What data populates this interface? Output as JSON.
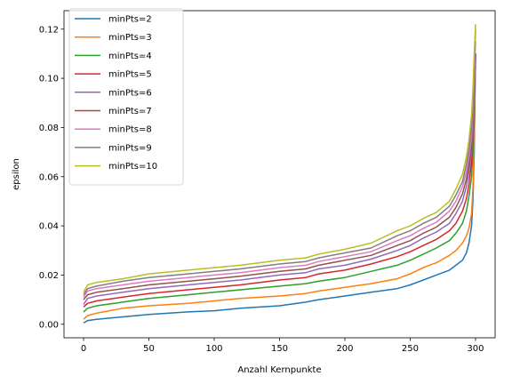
{
  "chart_data": {
    "type": "line",
    "xlabel": "Anzahl Kernpunkte",
    "ylabel": "epsilon",
    "xlim": [
      -15,
      315
    ],
    "ylim": [
      -0.0055,
      0.1275
    ],
    "xticks": [
      0,
      50,
      100,
      150,
      200,
      250,
      300
    ],
    "xtick_labels": [
      "0",
      "50",
      "100",
      "150",
      "200",
      "250",
      "300"
    ],
    "yticks": [
      0.0,
      0.02,
      0.04,
      0.06,
      0.08,
      0.1,
      0.12
    ],
    "ytick_labels": [
      "0.00",
      "0.02",
      "0.04",
      "0.06",
      "0.08",
      "0.10",
      "0.12"
    ],
    "grid": false,
    "legend_position": "top-left",
    "series": [
      {
        "name": "minPts=2",
        "color": "#1f77b4",
        "x": [
          0,
          3,
          10,
          30,
          50,
          80,
          100,
          120,
          150,
          170,
          180,
          200,
          220,
          240,
          250,
          260,
          270,
          280,
          285,
          290,
          293,
          295,
          297,
          298,
          299,
          300
        ],
        "values": [
          0.0005,
          0.0015,
          0.002,
          0.003,
          0.004,
          0.005,
          0.0055,
          0.0065,
          0.0075,
          0.009,
          0.01,
          0.0115,
          0.013,
          0.0145,
          0.016,
          0.018,
          0.02,
          0.022,
          0.024,
          0.026,
          0.029,
          0.033,
          0.04,
          0.05,
          0.07,
          0.11
        ]
      },
      {
        "name": "minPts=3",
        "color": "#ff7f0e",
        "x": [
          0,
          3,
          10,
          30,
          50,
          80,
          100,
          120,
          150,
          170,
          180,
          200,
          220,
          240,
          250,
          260,
          270,
          280,
          285,
          290,
          293,
          295,
          297,
          298,
          299,
          300
        ],
        "values": [
          0.002,
          0.0035,
          0.0045,
          0.0065,
          0.0075,
          0.0085,
          0.0095,
          0.0105,
          0.0115,
          0.0125,
          0.0135,
          0.015,
          0.0165,
          0.0185,
          0.0205,
          0.023,
          0.025,
          0.028,
          0.03,
          0.033,
          0.036,
          0.039,
          0.045,
          0.055,
          0.075,
          0.11
        ]
      },
      {
        "name": "minPts=4",
        "color": "#2ca02c",
        "x": [
          0,
          3,
          10,
          30,
          50,
          80,
          100,
          120,
          150,
          170,
          180,
          200,
          220,
          240,
          250,
          260,
          270,
          280,
          285,
          290,
          293,
          295,
          297,
          298,
          299,
          300
        ],
        "values": [
          0.005,
          0.0065,
          0.0075,
          0.009,
          0.0105,
          0.012,
          0.013,
          0.014,
          0.0155,
          0.0165,
          0.0175,
          0.019,
          0.0215,
          0.024,
          0.026,
          0.0285,
          0.031,
          0.034,
          0.037,
          0.041,
          0.046,
          0.052,
          0.06,
          0.07,
          0.085,
          0.11
        ]
      },
      {
        "name": "minPts=5",
        "color": "#d62728",
        "x": [
          0,
          3,
          10,
          30,
          50,
          80,
          100,
          120,
          150,
          170,
          180,
          200,
          220,
          240,
          250,
          260,
          270,
          280,
          285,
          290,
          293,
          295,
          297,
          298,
          299,
          300
        ],
        "values": [
          0.007,
          0.0085,
          0.0095,
          0.011,
          0.0125,
          0.014,
          0.015,
          0.016,
          0.018,
          0.019,
          0.0205,
          0.022,
          0.0245,
          0.0275,
          0.0295,
          0.032,
          0.0345,
          0.038,
          0.041,
          0.046,
          0.051,
          0.057,
          0.066,
          0.075,
          0.09,
          0.11
        ]
      },
      {
        "name": "minPts=6",
        "color": "#9467bd",
        "x": [
          0,
          3,
          10,
          30,
          50,
          80,
          100,
          120,
          150,
          170,
          180,
          200,
          220,
          240,
          250,
          260,
          270,
          280,
          285,
          290,
          293,
          295,
          297,
          298,
          299,
          300
        ],
        "values": [
          0.008,
          0.0105,
          0.0115,
          0.013,
          0.0145,
          0.016,
          0.017,
          0.018,
          0.02,
          0.021,
          0.0225,
          0.024,
          0.0265,
          0.03,
          0.032,
          0.035,
          0.0375,
          0.041,
          0.045,
          0.05,
          0.056,
          0.062,
          0.07,
          0.078,
          0.09,
          0.105
        ]
      },
      {
        "name": "minPts=7",
        "color": "#8c564b",
        "x": [
          0,
          3,
          10,
          30,
          50,
          80,
          100,
          120,
          150,
          170,
          180,
          200,
          220,
          240,
          250,
          260,
          270,
          280,
          285,
          290,
          293,
          295,
          297,
          298,
          299,
          300
        ],
        "values": [
          0.01,
          0.012,
          0.013,
          0.0145,
          0.016,
          0.0175,
          0.0185,
          0.0195,
          0.0215,
          0.0225,
          0.024,
          0.026,
          0.028,
          0.032,
          0.034,
          0.037,
          0.0395,
          0.0435,
          0.0475,
          0.053,
          0.059,
          0.065,
          0.073,
          0.082,
          0.095,
          0.11
        ]
      },
      {
        "name": "minPts=8",
        "color": "#e377c2",
        "x": [
          0,
          3,
          10,
          30,
          50,
          80,
          100,
          120,
          150,
          170,
          180,
          200,
          220,
          240,
          250,
          260,
          270,
          280,
          285,
          290,
          293,
          295,
          297,
          298,
          299,
          300
        ],
        "values": [
          0.011,
          0.0135,
          0.0145,
          0.016,
          0.0175,
          0.019,
          0.02,
          0.021,
          0.023,
          0.024,
          0.0255,
          0.0275,
          0.0295,
          0.034,
          0.036,
          0.039,
          0.0415,
          0.046,
          0.05,
          0.056,
          0.062,
          0.068,
          0.076,
          0.086,
          0.1,
          0.115
        ]
      },
      {
        "name": "minPts=9",
        "color": "#7f7f7f",
        "x": [
          0,
          3,
          10,
          30,
          50,
          80,
          100,
          120,
          150,
          170,
          180,
          200,
          220,
          240,
          250,
          260,
          270,
          280,
          285,
          290,
          293,
          295,
          297,
          298,
          299,
          300
        ],
        "values": [
          0.012,
          0.0145,
          0.0155,
          0.0175,
          0.019,
          0.0205,
          0.0215,
          0.0225,
          0.0245,
          0.0255,
          0.027,
          0.029,
          0.031,
          0.036,
          0.038,
          0.041,
          0.0435,
          0.048,
          0.0525,
          0.058,
          0.065,
          0.071,
          0.08,
          0.09,
          0.105,
          0.12
        ]
      },
      {
        "name": "minPts=10",
        "color": "#bcbd22",
        "x": [
          0,
          3,
          10,
          30,
          50,
          80,
          100,
          120,
          150,
          170,
          180,
          200,
          220,
          240,
          250,
          260,
          270,
          280,
          285,
          290,
          293,
          295,
          297,
          298,
          299,
          300
        ],
        "values": [
          0.013,
          0.016,
          0.017,
          0.0185,
          0.0205,
          0.022,
          0.023,
          0.024,
          0.026,
          0.027,
          0.0285,
          0.0305,
          0.033,
          0.038,
          0.04,
          0.043,
          0.0455,
          0.05,
          0.055,
          0.061,
          0.068,
          0.075,
          0.085,
          0.095,
          0.11,
          0.122
        ]
      }
    ]
  }
}
